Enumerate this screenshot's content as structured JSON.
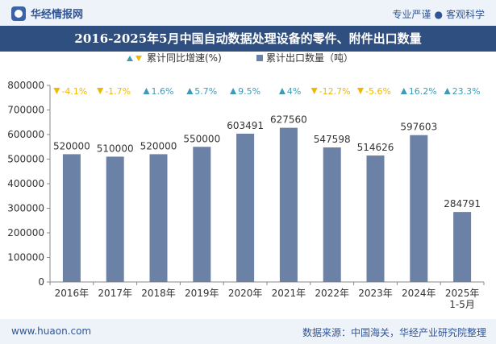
{
  "header": {
    "brand": "华经情报网",
    "brand_icon": "hj-logo-icon",
    "slogan_left": "专业严谨",
    "slogan_sep": "●",
    "slogan_right": "客观科学"
  },
  "footer": {
    "website": "www.huaon.com",
    "source": "数据来源：中国海关，华经产业研究院整理"
  },
  "colors": {
    "bar": "#6c81a6",
    "up": "#3e9bb8",
    "down": "#f2b800",
    "header_bg": "#2f4f80"
  },
  "chart_data": {
    "type": "bar",
    "title": "2016-2025年5月中国自动数据处理设备的零件、附件出口数量",
    "legend": [
      {
        "name": "累计同比增速(%)",
        "marker": "triangles"
      },
      {
        "name": "累计出口数量（吨）",
        "marker": "square"
      }
    ],
    "legend_position": "top",
    "categories": [
      "2016年",
      "2017年",
      "2018年",
      "2019年",
      "2020年",
      "2021年",
      "2022年",
      "2023年",
      "2024年",
      "2025年\n1-5月"
    ],
    "series": [
      {
        "name": "累计出口数量（吨）",
        "values": [
          520000,
          510000,
          520000,
          550000,
          603491,
          627560,
          547598,
          514626,
          597603,
          284791
        ]
      }
    ],
    "growth": [
      {
        "label": "-4.1%",
        "dir": "down"
      },
      {
        "label": "-1.7%",
        "dir": "down"
      },
      {
        "label": "1.6%",
        "dir": "up"
      },
      {
        "label": "5.7%",
        "dir": "up"
      },
      {
        "label": "9.5%",
        "dir": "up"
      },
      {
        "label": "4%",
        "dir": "up"
      },
      {
        "label": "-12.7%",
        "dir": "down"
      },
      {
        "label": "-5.6%",
        "dir": "down"
      },
      {
        "label": "16.2%",
        "dir": "up"
      },
      {
        "label": "23.3%",
        "dir": "up"
      }
    ],
    "ylim": [
      0,
      800000
    ],
    "yticks": [
      0,
      100000,
      200000,
      300000,
      400000,
      500000,
      600000,
      700000,
      800000
    ],
    "grid": false
  }
}
